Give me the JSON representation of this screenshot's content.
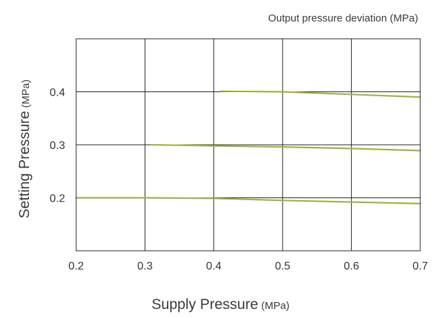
{
  "chart_data": {
    "type": "line",
    "title": "Output pressure deviation (MPa)",
    "xlabel": {
      "main": "Supply Pressure",
      "unit": "(MPa)"
    },
    "ylabel": {
      "main": "Setting Pressure",
      "unit": "(MPa)"
    },
    "xlim": [
      0.2,
      0.7
    ],
    "ylim": [
      0.1,
      0.5
    ],
    "x_ticks": [
      "0.2",
      "0.3",
      "0.4",
      "0.5",
      "0.6",
      "0.7"
    ],
    "y_ticks": [
      "0.2",
      "0.3",
      "0.4"
    ],
    "grid": true,
    "colors": {
      "series": "#a7ad4a",
      "grid": "#222222",
      "text": "#333333"
    },
    "series": [
      {
        "x": [
          0.2,
          0.3,
          0.4,
          0.5,
          0.6,
          0.7
        ],
        "y": [
          0.2,
          0.2,
          0.199,
          0.195,
          0.192,
          0.189
        ]
      },
      {
        "x": [
          0.31,
          0.4,
          0.5,
          0.6,
          0.7
        ],
        "y": [
          0.3,
          0.298,
          0.296,
          0.293,
          0.289
        ]
      },
      {
        "x": [
          0.41,
          0.5,
          0.6,
          0.7
        ],
        "y": [
          0.401,
          0.4,
          0.395,
          0.39
        ]
      }
    ]
  }
}
